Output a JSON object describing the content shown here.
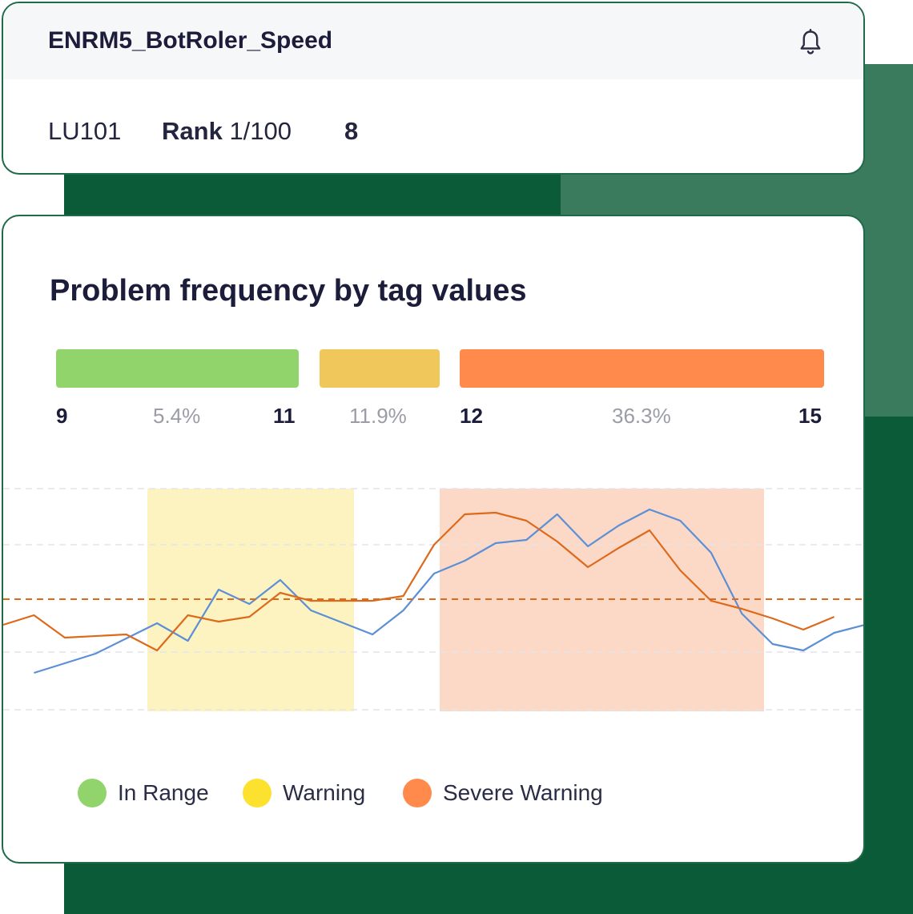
{
  "header": {
    "title": "ENRM5_BotRoler_Speed",
    "icon": "bell-icon"
  },
  "meta": {
    "unit": "LU101",
    "rank_label": "Rank",
    "rank_value": "1/100",
    "count": "8"
  },
  "chart": {
    "title": "Problem frequency by tag values",
    "ranges": [
      {
        "name": "In Range",
        "from": "9",
        "to": "11",
        "percent": "5.4%",
        "color": "#90d46b"
      },
      {
        "name": "Warning",
        "from": "11",
        "to": "12",
        "percent": "11.9%",
        "color": "#f0c75a"
      },
      {
        "name": "Severe Warning",
        "from": "12",
        "to": "15",
        "percent": "36.3%",
        "color": "#ff8a4c"
      }
    ],
    "legend": [
      {
        "label": "In Range",
        "color": "#90d46b"
      },
      {
        "label": "Warning",
        "color": "#fde12f"
      },
      {
        "label": "Severe Warning",
        "color": "#ff8a4c"
      }
    ]
  },
  "chart_data": {
    "type": "line",
    "x": [
      0,
      1,
      2,
      3,
      4,
      5,
      6,
      7,
      8,
      9,
      10,
      11,
      12,
      13,
      14,
      15,
      16,
      17,
      18,
      19,
      20,
      21,
      22,
      23,
      24,
      25,
      26,
      27,
      28
    ],
    "series": [
      {
        "color": "#5b8fd6",
        "values": [
          null,
          30,
          null,
          42,
          null,
          61,
          50,
          82,
          73,
          88,
          69,
          null,
          54,
          69,
          92,
          100,
          111,
          113,
          129,
          109,
          122,
          132,
          125,
          105,
          67,
          48,
          44,
          55,
          60
        ]
      },
      {
        "color": "#dd6a1c",
        "values": [
          60,
          66,
          52,
          null,
          54,
          44,
          66,
          62,
          65,
          80,
          75,
          null,
          75,
          78,
          110,
          129,
          130,
          125,
          112,
          96,
          108,
          119,
          94,
          75,
          70,
          64,
          57,
          65,
          null
        ]
      }
    ],
    "threshold_line": {
      "color": "#dd6a1c",
      "style": "dashed"
    },
    "shaded_bands": [
      {
        "name": "Warning",
        "color": "#fdf3c1"
      },
      {
        "name": "Severe Warning",
        "color": "#fcd8c6"
      }
    ],
    "grid": true,
    "legend_position": "bottom-left"
  }
}
